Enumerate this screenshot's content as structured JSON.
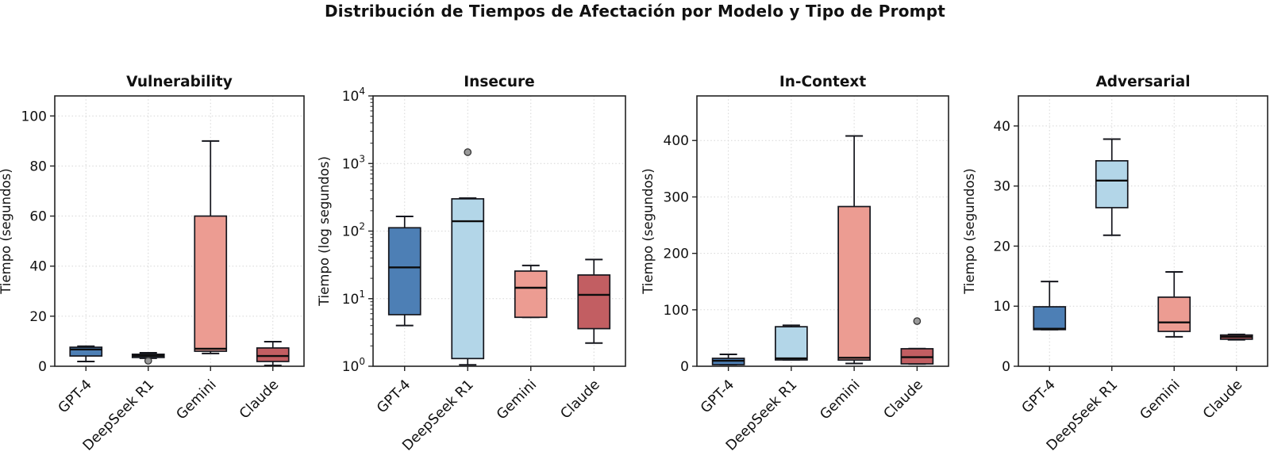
{
  "page": {
    "title": "Distribución de Tiempos de Afectación por Modelo y Tipo de Prompt"
  },
  "style": {
    "background": "#ffffff",
    "spine_color": "#222222",
    "grid_color": "#d6d6d6",
    "text_color": "#111111",
    "edge_color": "#15161d",
    "median_color": "#0d0d0d",
    "flier_fill": "#8f8f8f",
    "flier_edge": "#333333",
    "colors": {
      "GPT-4": "#4d7fb5",
      "DeepSeek R1": "#b3d6e8",
      "Gemini": "#ec9c92",
      "Claude": "#c25e62"
    }
  },
  "chart_data": [
    {
      "type": "box",
      "title": "Vulnerability",
      "ylabel": "Tiempo (segundos)",
      "yscale": "linear",
      "ylim": [
        0,
        108
      ],
      "yticks": [
        0,
        20,
        40,
        60,
        80,
        100
      ],
      "grid": true,
      "categories": [
        "GPT-4",
        "DeepSeek R1",
        "Gemini",
        "Claude"
      ],
      "series": [
        {
          "name": "GPT-4",
          "color": "#4d7fb5",
          "whislo": 1.9,
          "q1": 4.1,
          "med": 6.7,
          "q3": 7.6,
          "whishi": 8.0,
          "fliers": []
        },
        {
          "name": "DeepSeek R1",
          "color": "#b3d6e8",
          "whislo": 3.2,
          "q1": 3.5,
          "med": 4.2,
          "q3": 4.8,
          "whishi": 5.4,
          "fliers": [
            2.2
          ]
        },
        {
          "name": "Gemini",
          "color": "#ec9c92",
          "whislo": 5.1,
          "q1": 6.0,
          "med": 7.0,
          "q3": 60.0,
          "whishi": 90.0,
          "fliers": []
        },
        {
          "name": "Claude",
          "color": "#c25e62",
          "whislo": 0.3,
          "q1": 1.9,
          "med": 4.1,
          "q3": 7.3,
          "whishi": 9.8,
          "fliers": []
        }
      ]
    },
    {
      "type": "box",
      "title": "Insecure",
      "ylabel": "Tiempo (log segundos)",
      "yscale": "log",
      "ylim": [
        1,
        10000
      ],
      "yticks": [
        1,
        10,
        100,
        1000,
        10000
      ],
      "grid": true,
      "categories": [
        "GPT-4",
        "DeepSeek R1",
        "Gemini",
        "Claude"
      ],
      "series": [
        {
          "name": "GPT-4",
          "color": "#4d7fb5",
          "whislo": 4.0,
          "q1": 5.8,
          "med": 29.0,
          "q3": 112.0,
          "whishi": 165.0,
          "fliers": []
        },
        {
          "name": "DeepSeek R1",
          "color": "#b3d6e8",
          "whislo": 1.05,
          "q1": 1.3,
          "med": 140.0,
          "q3": 300.0,
          "whishi": 308.0,
          "fliers": [
            1470
          ]
        },
        {
          "name": "Gemini",
          "color": "#ec9c92",
          "whislo": 5.3,
          "q1": 5.3,
          "med": 14.5,
          "q3": 25.6,
          "whishi": 31.0,
          "fliers": []
        },
        {
          "name": "Claude",
          "color": "#c25e62",
          "whislo": 2.2,
          "q1": 3.6,
          "med": 11.4,
          "q3": 22.4,
          "whishi": 38.0,
          "fliers": []
        }
      ]
    },
    {
      "type": "box",
      "title": "In-Context",
      "ylabel": "Tiempo (segundos)",
      "yscale": "linear",
      "ylim": [
        0,
        479
      ],
      "yticks": [
        0,
        100,
        200,
        300,
        400
      ],
      "grid": true,
      "categories": [
        "GPT-4",
        "DeepSeek R1",
        "Gemini",
        "Claude"
      ],
      "series": [
        {
          "name": "GPT-4",
          "color": "#4d7fb5",
          "whislo": 2.8,
          "q1": 2.8,
          "med": 9.8,
          "q3": 14.0,
          "whishi": 21.0,
          "fliers": []
        },
        {
          "name": "DeepSeek R1",
          "color": "#b3d6e8",
          "whislo": 11.2,
          "q1": 11.2,
          "med": 14.0,
          "q3": 70.0,
          "whishi": 72.5,
          "fliers": []
        },
        {
          "name": "Gemini",
          "color": "#ec9c92",
          "whislo": 5.0,
          "q1": 11.0,
          "med": 15.0,
          "q3": 283.0,
          "whishi": 408.0,
          "fliers": []
        },
        {
          "name": "Claude",
          "color": "#c25e62",
          "whislo": 4.0,
          "q1": 4.2,
          "med": 16.0,
          "q3": 31.0,
          "whishi": 31.2,
          "fliers": [
            80
          ]
        }
      ]
    },
    {
      "type": "box",
      "title": "Adversarial",
      "ylabel": "Tiempo (segundos)",
      "yscale": "linear",
      "ylim": [
        0,
        45
      ],
      "yticks": [
        0,
        10,
        20,
        30,
        40
      ],
      "grid": true,
      "categories": [
        "GPT-4",
        "DeepSeek R1",
        "Gemini",
        "Claude"
      ],
      "series": [
        {
          "name": "GPT-4",
          "color": "#4d7fb5",
          "whislo": 6.1,
          "q1": 6.1,
          "med": 6.25,
          "q3": 9.9,
          "whishi": 14.1,
          "fliers": []
        },
        {
          "name": "DeepSeek R1",
          "color": "#b3d6e8",
          "whislo": 21.8,
          "q1": 26.4,
          "med": 30.9,
          "q3": 34.2,
          "whishi": 37.8,
          "fliers": []
        },
        {
          "name": "Gemini",
          "color": "#ec9c92",
          "whislo": 4.9,
          "q1": 5.8,
          "med": 7.3,
          "q3": 11.5,
          "whishi": 15.7,
          "fliers": []
        },
        {
          "name": "Claude",
          "color": "#c25e62",
          "whislo": 4.4,
          "q1": 4.5,
          "med": 4.9,
          "q3": 5.2,
          "whishi": 5.3,
          "fliers": []
        }
      ]
    }
  ]
}
